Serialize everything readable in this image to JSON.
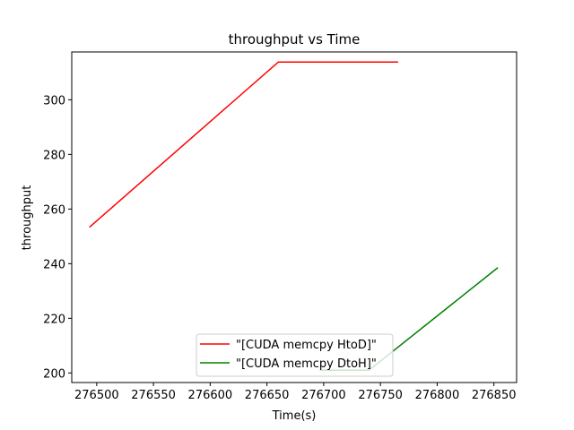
{
  "chart_data": {
    "type": "line",
    "title": "throughput vs Time",
    "xlabel": "Time(s)",
    "ylabel": "throughput",
    "xlim": [
      276478,
      276870
    ],
    "ylim": [
      196.5,
      317.5
    ],
    "xticks": [
      276500,
      276550,
      276600,
      276650,
      276700,
      276750,
      276800,
      276850
    ],
    "xtick_labels": [
      "276500",
      "276550",
      "276600",
      "276650",
      "276700",
      "276750",
      "276800",
      "276850"
    ],
    "yticks": [
      200,
      220,
      240,
      260,
      280,
      300
    ],
    "ytick_labels": [
      "200",
      "220",
      "240",
      "260",
      "280",
      "300"
    ],
    "grid": false,
    "legend_position": "lower center",
    "series": [
      {
        "name": "\"[CUDA memcpy HtoD]\"",
        "color": "#ff0000",
        "x": [
          276494,
          276660,
          276765
        ],
        "y": [
          253.5,
          313.8,
          313.8
        ]
      },
      {
        "name": "\"[CUDA memcpy DtoH]\"",
        "color": "#008000",
        "x": [
          276697,
          276740,
          276853
        ],
        "y": [
          201,
          201,
          238.4
        ]
      }
    ]
  }
}
